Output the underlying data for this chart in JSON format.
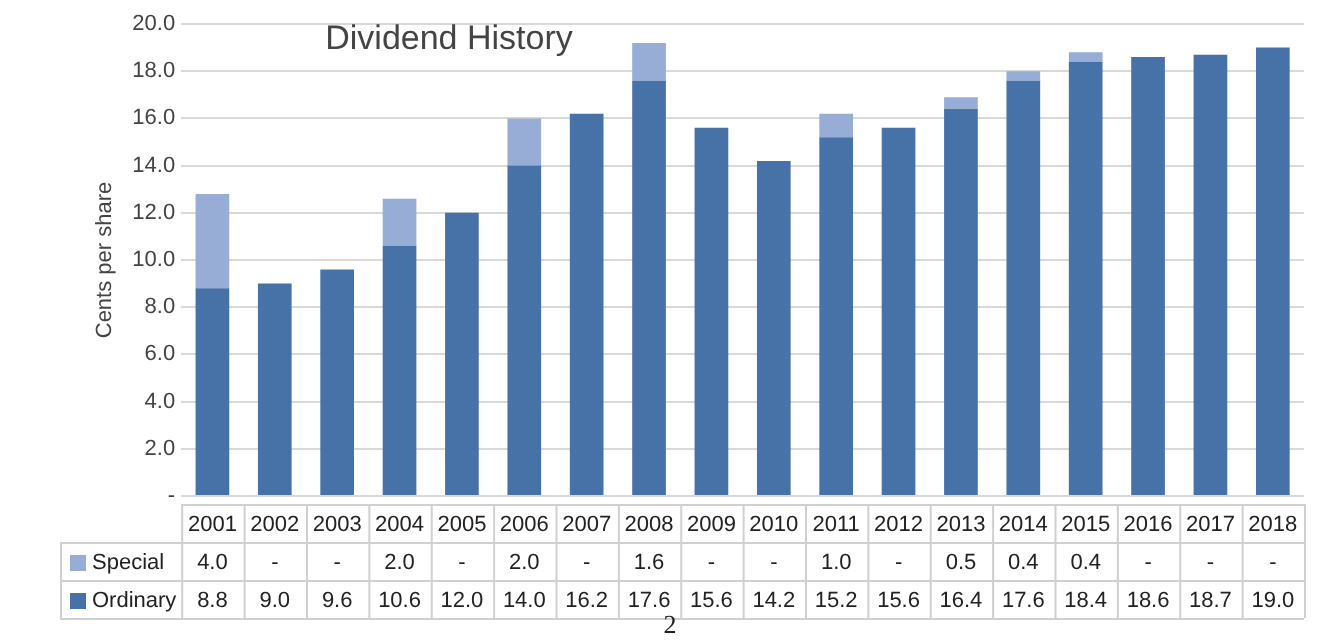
{
  "chart_data": {
    "type": "bar",
    "title": "Dividend History",
    "ylabel": "Cents per share",
    "stacked": true,
    "grid": "y",
    "legend": "bottom",
    "categories": [
      "2001",
      "2002",
      "2003",
      "2004",
      "2005",
      "2006",
      "2007",
      "2008",
      "2009",
      "2010",
      "2011",
      "2012",
      "2013",
      "2014",
      "2015",
      "2016",
      "2017",
      "2018"
    ],
    "ylim": [
      0,
      20
    ],
    "yticks": [
      {
        "value": 0,
        "label": "-"
      },
      {
        "value": 2,
        "label": "2.0"
      },
      {
        "value": 4,
        "label": "4.0"
      },
      {
        "value": 6,
        "label": "6.0"
      },
      {
        "value": 8,
        "label": "8.0"
      },
      {
        "value": 10,
        "label": "10.0"
      },
      {
        "value": 12,
        "label": "12.0"
      },
      {
        "value": 14,
        "label": "14.0"
      },
      {
        "value": 16,
        "label": "16.0"
      },
      {
        "value": 18,
        "label": "18.0"
      },
      {
        "value": 20,
        "label": "20.0"
      }
    ],
    "series": [
      {
        "name": "Ordinary",
        "color": "#4672a8",
        "values": [
          8.8,
          9.0,
          9.6,
          10.6,
          12.0,
          14.0,
          16.2,
          17.6,
          15.6,
          14.2,
          15.2,
          15.6,
          16.4,
          17.6,
          18.4,
          18.6,
          18.7,
          19.0
        ],
        "value_labels": [
          "8.8",
          "9.0",
          "9.6",
          "10.6",
          "12.0",
          "14.0",
          "16.2",
          "17.6",
          "15.6",
          "14.2",
          "15.2",
          "15.6",
          "16.4",
          "17.6",
          "18.4",
          "18.6",
          "18.7",
          "19.0"
        ]
      },
      {
        "name": "Special",
        "color": "#97add6",
        "values": [
          4.0,
          null,
          null,
          2.0,
          null,
          2.0,
          null,
          1.6,
          null,
          null,
          1.0,
          null,
          0.5,
          0.4,
          0.4,
          null,
          null,
          null
        ],
        "value_labels": [
          "4.0",
          "-",
          "-",
          "2.0",
          "-",
          "2.0",
          "-",
          "1.6",
          "-",
          "-",
          "1.0",
          "-",
          "0.5",
          "0.4",
          "0.4",
          "-",
          "-",
          "-"
        ]
      }
    ],
    "annotations": [
      "2"
    ]
  }
}
